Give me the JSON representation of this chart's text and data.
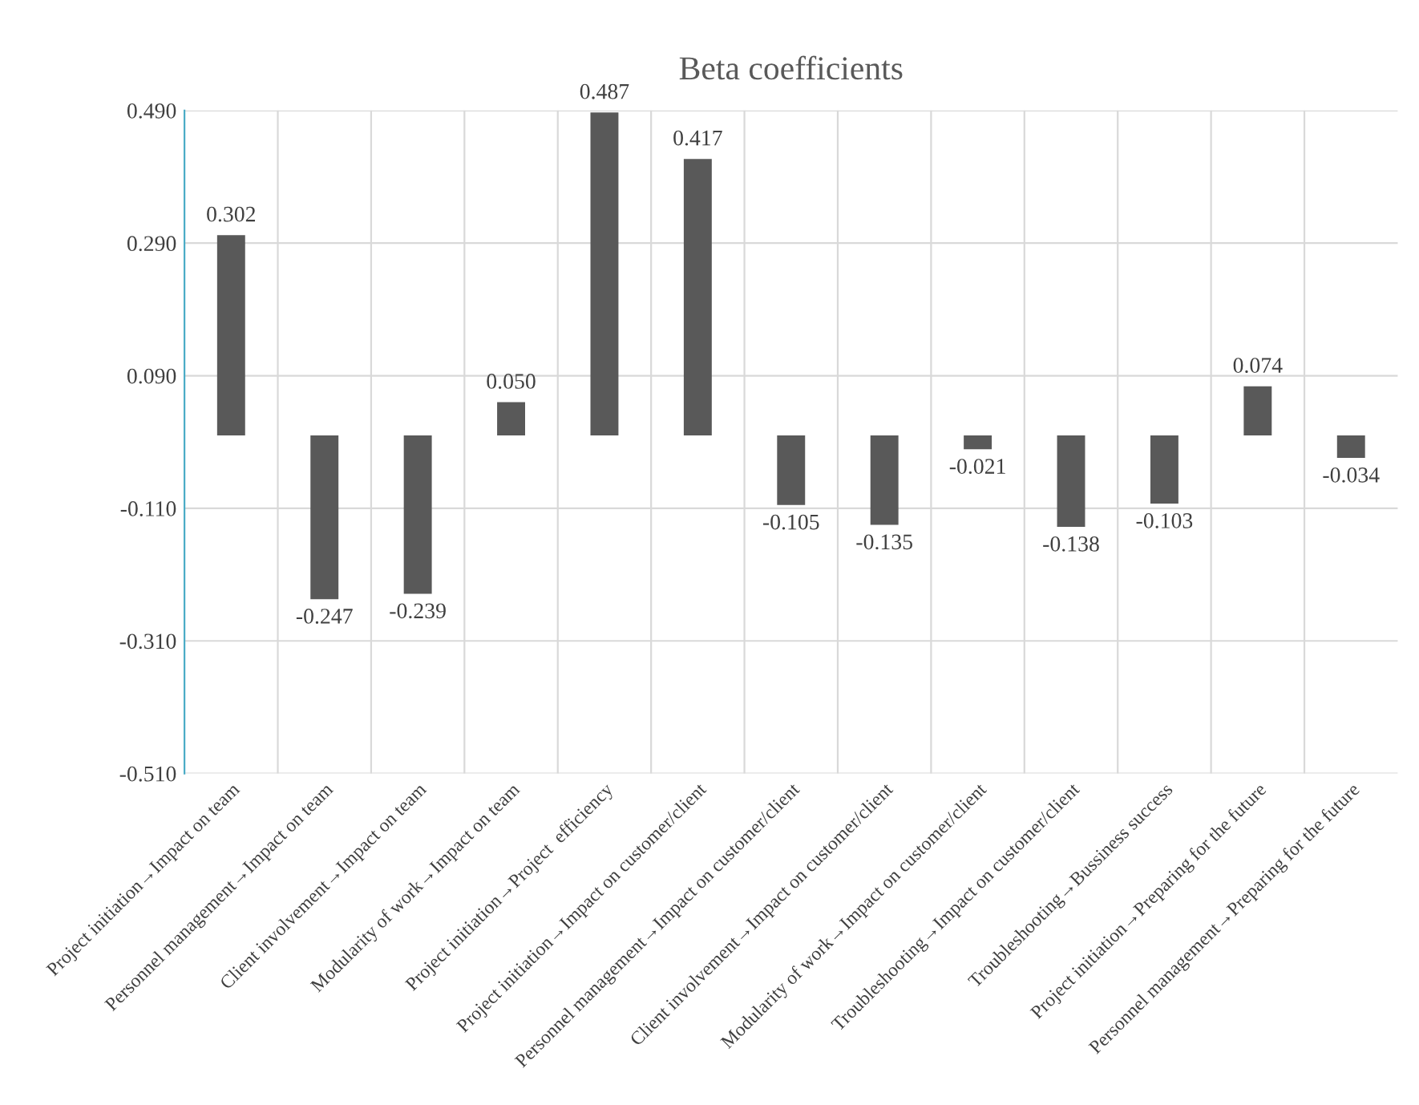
{
  "chart_data": {
    "type": "bar",
    "title": "Beta coefficients",
    "categories": [
      "Project initiation→Impact on team",
      "Personnel management→Impact on team",
      "Client involvement→Impact on team",
      "Modularity of work→Impact on team",
      "Project initiation→Project  efficiency",
      "Project initiation→Impact on customer/client",
      "Personnel management→Impact on customer/client",
      "Client involvement→Impact on customer/client",
      "Modularity of work→Impact on customer/client",
      "Troubleshooting→Impact on customer/client",
      "Troubleshooting→Bussiness success",
      "Project initiation→Preparing for the future",
      "Personnel management→Preparing for the future"
    ],
    "values": [
      0.302,
      -0.247,
      -0.239,
      0.05,
      0.487,
      0.417,
      -0.105,
      -0.135,
      -0.021,
      -0.138,
      -0.103,
      0.074,
      -0.034
    ],
    "value_labels": [
      "0.302",
      "-0.247",
      "-0.239",
      "0.050",
      "0.487",
      "0.417",
      "-0.105",
      "-0.135",
      "-0.021",
      "-0.138",
      "-0.103",
      "0.074",
      "-0.034"
    ],
    "color": "#595959",
    "ylim": [
      -0.51,
      0.49
    ],
    "yticks": [
      {
        "value": -0.51,
        "label": "-0.510"
      },
      {
        "value": -0.31,
        "label": "-0.310"
      },
      {
        "value": -0.11,
        "label": "-0.110"
      },
      {
        "value": 0.09,
        "label": "0.090"
      },
      {
        "value": 0.29,
        "label": "0.290"
      },
      {
        "value": 0.49,
        "label": "0.490"
      }
    ],
    "grid": true
  }
}
